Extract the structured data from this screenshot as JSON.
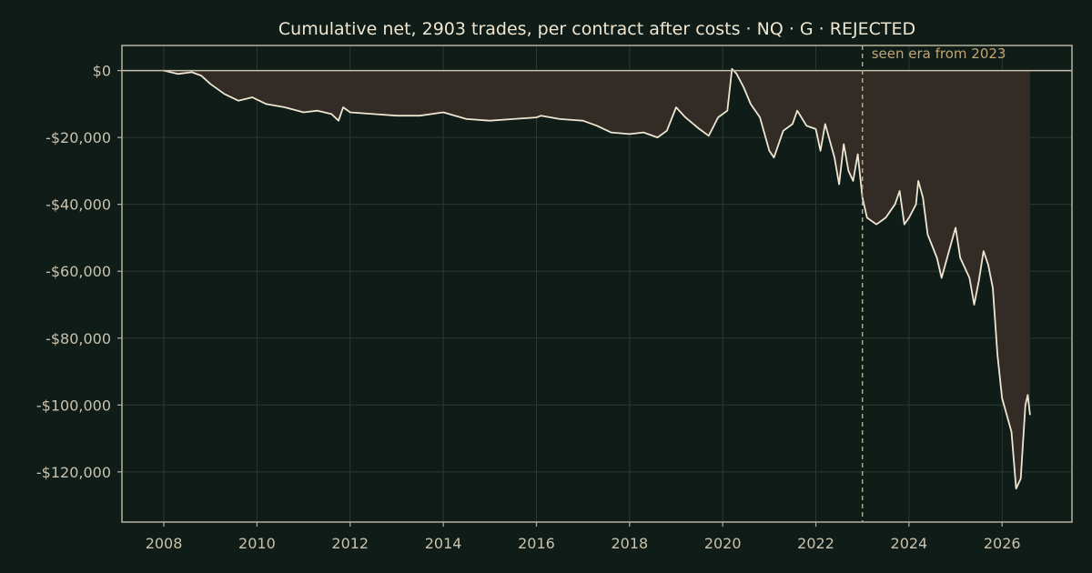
{
  "chart_data": {
    "type": "area",
    "title": "Cumulative net, 2903 trades, per contract after costs  ·  NQ · G · REJECTED",
    "xlabel": "",
    "ylabel": "",
    "xlim": [
      2007.1,
      2027.5
    ],
    "ylim": [
      -135000,
      7500
    ],
    "x_ticks": [
      2008,
      2010,
      2012,
      2014,
      2016,
      2018,
      2020,
      2022,
      2024,
      2026
    ],
    "y_ticks": [
      0,
      -20000,
      -40000,
      -60000,
      -80000,
      -100000,
      -120000
    ],
    "y_tick_labels": [
      "$0",
      "-$20,000",
      "-$40,000",
      "-$60,000",
      "-$80,000",
      "-$100,000",
      "-$120,000"
    ],
    "grid": true,
    "zero_line": 0,
    "vline": {
      "x": 2023.0,
      "label": "seen era from 2023"
    },
    "colors": {
      "line": "#efe6d2",
      "fill": "#332c26",
      "vline": "#c2a673",
      "background": "#0f1c17"
    },
    "series": [
      {
        "x": [
          2008.0,
          2008.3,
          2008.6,
          2008.8,
          2009.0,
          2009.3,
          2009.6,
          2009.9,
          2010.2,
          2010.6,
          2011.0,
          2011.3,
          2011.6,
          2011.75,
          2011.85,
          2012.0,
          2012.5,
          2013.0,
          2013.5,
          2014.0,
          2014.5,
          2015.0,
          2015.5,
          2016.0,
          2016.1,
          2016.5,
          2017.0,
          2017.3,
          2017.6,
          2018.0,
          2018.3,
          2018.6,
          2018.8,
          2019.0,
          2019.2,
          2019.5,
          2019.7,
          2019.9,
          2020.1,
          2020.2,
          2020.3,
          2020.45,
          2020.6,
          2020.8,
          2021.0,
          2021.1,
          2021.3,
          2021.5,
          2021.6,
          2021.8,
          2022.0,
          2022.1,
          2022.2,
          2022.4,
          2022.5,
          2022.6,
          2022.7,
          2022.8,
          2022.9,
          2023.0,
          2023.1,
          2023.3,
          2023.5,
          2023.7,
          2023.8,
          2023.9,
          2024.0,
          2024.15,
          2024.2,
          2024.3,
          2024.4,
          2024.6,
          2024.7,
          2024.9,
          2025.0,
          2025.1,
          2025.3,
          2025.4,
          2025.5,
          2025.6,
          2025.7,
          2025.8,
          2025.9,
          2026.0,
          2026.2,
          2026.3,
          2026.4,
          2026.5,
          2026.55,
          2026.6
        ],
        "values": [
          0,
          -1000,
          -500,
          -1500,
          -4000,
          -7000,
          -9000,
          -8000,
          -10000,
          -11000,
          -12500,
          -12000,
          -13000,
          -15000,
          -11000,
          -12500,
          -13000,
          -13500,
          -13500,
          -12500,
          -14500,
          -15000,
          -14500,
          -14000,
          -13500,
          -14500,
          -15000,
          -16500,
          -18500,
          -19000,
          -18500,
          -20000,
          -18000,
          -11000,
          -14000,
          -17500,
          -19500,
          -14000,
          -12000,
          500,
          -1000,
          -5000,
          -10000,
          -14000,
          -24000,
          -26000,
          -18000,
          -16000,
          -12000,
          -16500,
          -17500,
          -24000,
          -16000,
          -26000,
          -34000,
          -22000,
          -30000,
          -33000,
          -25000,
          -38000,
          -44000,
          -46000,
          -44000,
          -40000,
          -36000,
          -46000,
          -44000,
          -40000,
          -33000,
          -38000,
          -49000,
          -56000,
          -62000,
          -52000,
          -47000,
          -56000,
          -62000,
          -70000,
          -63000,
          -54000,
          -58000,
          -65000,
          -85000,
          -98000,
          -108000,
          -125000,
          -122000,
          -100000,
          -97000,
          -103000
        ]
      }
    ]
  }
}
